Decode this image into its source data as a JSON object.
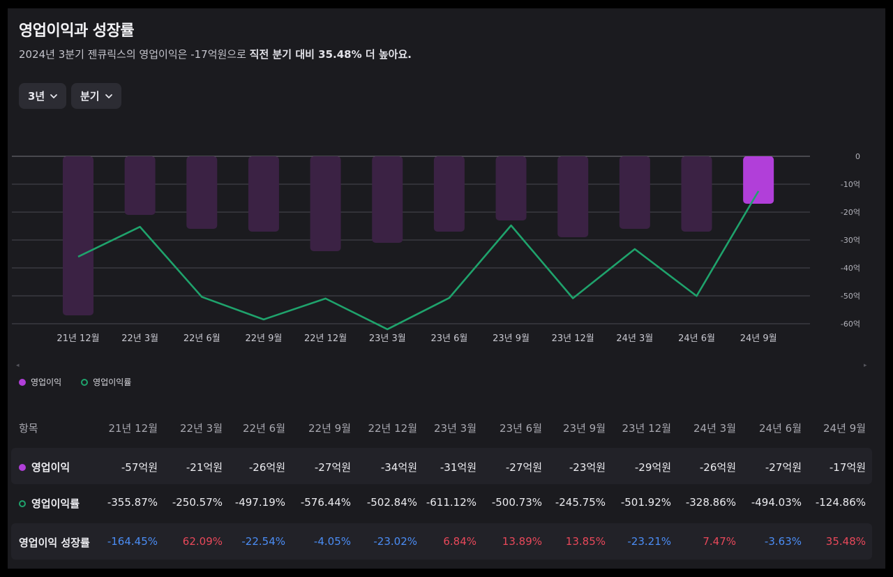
{
  "header": {
    "title": "영업이익과 성장률",
    "subtitle_plain": "2024년 3분기 젠큐릭스의 영업이익은 -17억원으로 ",
    "subtitle_bold": "직전 분기 대비 35.48% 더 높아요."
  },
  "filters": {
    "period": "3년",
    "interval": "분기"
  },
  "legend": {
    "bar": "영업이익",
    "line": "영업이익률"
  },
  "colors": {
    "bar": "#3b2244",
    "bar_highlight": "#b13fd9",
    "line": "#1fa36c",
    "positive": "#e8485a",
    "negative": "#4b8df5"
  },
  "chart_data": {
    "type": "bar+line",
    "categories": [
      "21년 12월",
      "22년 3월",
      "22년 6월",
      "22년 9월",
      "22년 12월",
      "23년 3월",
      "23년 6월",
      "23년 9월",
      "23년 12월",
      "24년 3월",
      "24년 6월",
      "24년 9월"
    ],
    "series": [
      {
        "name": "영업이익",
        "type": "bar",
        "unit": "억원",
        "values": [
          -57,
          -21,
          -26,
          -27,
          -34,
          -31,
          -27,
          -23,
          -29,
          -26,
          -27,
          -17
        ]
      },
      {
        "name": "영업이익률",
        "type": "line",
        "unit": "%",
        "values": [
          -355.87,
          -250.57,
          -497.19,
          -576.44,
          -502.84,
          -611.12,
          -500.73,
          -245.75,
          -501.92,
          -328.86,
          -494.03,
          -124.86
        ]
      }
    ],
    "y_axis": {
      "ticks": [
        "0",
        "-10억",
        "-20억",
        "-30억",
        "-40억",
        "-50억",
        "-60억"
      ],
      "range": [
        -60,
        0
      ]
    },
    "grid": true,
    "legend_position": "bottom-left"
  },
  "table": {
    "header_label": "항목",
    "columns": [
      "21년 12월",
      "22년 3월",
      "22년 6월",
      "22년 9월",
      "22년 12월",
      "23년 3월",
      "23년 6월",
      "23년 9월",
      "23년 12월",
      "24년 3월",
      "24년 6월",
      "24년 9월"
    ],
    "rows": [
      {
        "label": "영업이익",
        "cells": [
          "-57억원",
          "-21억원",
          "-26억원",
          "-27억원",
          "-34억원",
          "-31억원",
          "-27억원",
          "-23억원",
          "-29억원",
          "-26억원",
          "-27억원",
          "-17억원"
        ]
      },
      {
        "label": "영업이익률",
        "cells": [
          "-355.87%",
          "-250.57%",
          "-497.19%",
          "-576.44%",
          "-502.84%",
          "-611.12%",
          "-500.73%",
          "-245.75%",
          "-501.92%",
          "-328.86%",
          "-494.03%",
          "-124.86%"
        ]
      },
      {
        "label": "영업이익 성장률",
        "cells": [
          "-164.45%",
          "62.09%",
          "-22.54%",
          "-4.05%",
          "-23.02%",
          "6.84%",
          "13.89%",
          "13.85%",
          "-23.21%",
          "7.47%",
          "-3.63%",
          "35.48%"
        ]
      }
    ]
  }
}
